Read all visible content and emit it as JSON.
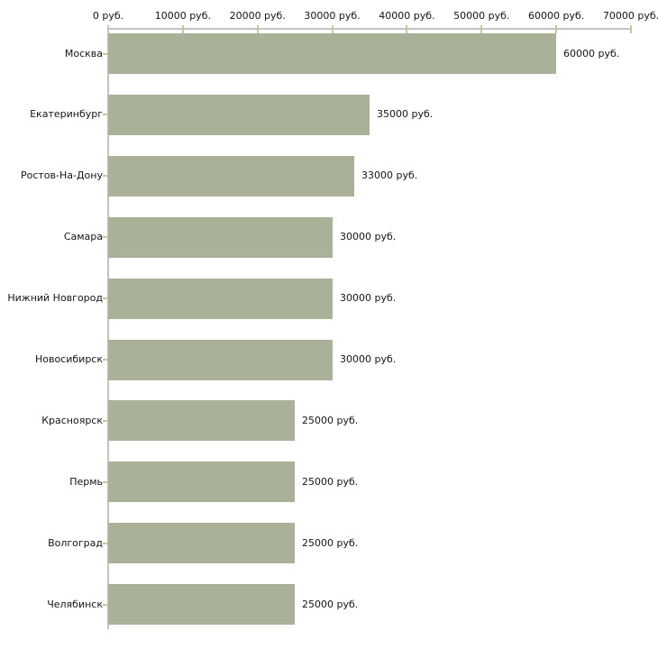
{
  "chart_data": {
    "type": "bar",
    "orientation": "horizontal",
    "categories": [
      "Москва",
      "Екатеринбург",
      "Ростов-На-Дону",
      "Самара",
      "Нижний Новгород",
      "Новосибирск",
      "Красноярск",
      "Пермь",
      "Волгоград",
      "Челябинск"
    ],
    "values": [
      60000,
      35000,
      33000,
      30000,
      30000,
      30000,
      25000,
      25000,
      25000,
      25000
    ],
    "value_labels": [
      "60000 руб.",
      "35000 руб.",
      "33000 руб.",
      "30000 руб.",
      "30000 руб.",
      "30000 руб.",
      "25000 руб.",
      "25000 руб.",
      "25000 руб.",
      "25000 руб."
    ],
    "x_axis": {
      "position": "top",
      "min": 0,
      "max": 70000,
      "ticks": [
        0,
        10000,
        20000,
        30000,
        40000,
        50000,
        60000,
        70000
      ],
      "tick_labels": [
        "0 руб.",
        "10000 руб.",
        "20000 руб.",
        "30000 руб.",
        "40000 руб.",
        "50000 руб.",
        "60000 руб.",
        "70000 руб."
      ]
    },
    "title": "",
    "legend": false,
    "grid": false,
    "colors": {
      "bar": "#a9b198",
      "axis_line": "#c3c3c3",
      "tick_mark": "#c6c79b",
      "text": "#141414",
      "background": "#ffffff"
    }
  }
}
